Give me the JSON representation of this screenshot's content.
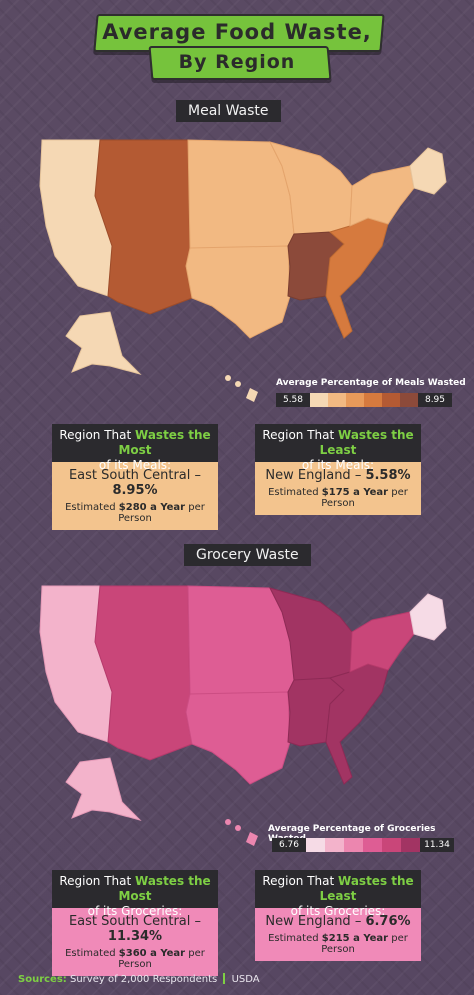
{
  "title": {
    "line1": "Average Food Waste,",
    "line2": "By Region"
  },
  "colors": {
    "accent_green": "#76c33c",
    "meal_scale": [
      "#f5d8b4",
      "#f2b982",
      "#e89a5a",
      "#d67a3e",
      "#b45a33",
      "#8c4a3a"
    ],
    "grocery_scale": [
      "#f6dbe6",
      "#f3b3cb",
      "#ec86af",
      "#de5d94",
      "#c94679",
      "#a23463"
    ]
  },
  "meal": {
    "tag": "Meal Waste",
    "legend_title": "Average Percentage of Meals Wasted",
    "legend_min": "5.58",
    "legend_max": "8.95",
    "most": {
      "head_pre": "Region That ",
      "head_hl": "Wastes the Most",
      "head_post": "of its Meals:",
      "region": "East South Central – ",
      "value": "8.95%",
      "est_pre": "Estimated ",
      "est_amount": "$280 a Year",
      "est_post": " per Person"
    },
    "least": {
      "head_pre": "Region That ",
      "head_hl": "Wastes the Least",
      "head_post": "of its Meals:",
      "region": "New England – ",
      "value": "5.58%",
      "est_pre": "Estimated ",
      "est_amount": "$175 a Year",
      "est_post": " per Person"
    }
  },
  "grocery": {
    "tag": "Grocery Waste",
    "legend_title": "Average Percentage of Groceries Wasted",
    "legend_min": "6.76",
    "legend_max": "11.34",
    "most": {
      "head_pre": "Region That ",
      "head_hl": "Wastes the Most",
      "head_post": "of its Groceries:",
      "region": "East South Central – ",
      "value": "11.34%",
      "est_pre": "Estimated ",
      "est_amount": "$360 a Year",
      "est_post": " per Person"
    },
    "least": {
      "head_pre": "Region That ",
      "head_hl": "Wastes the Least",
      "head_post": "of its Groceries:",
      "region": "New England – ",
      "value": "6.76%",
      "est_pre": "Estimated ",
      "est_amount": "$215 a Year",
      "est_post": " per Person"
    }
  },
  "source": {
    "label": "Sources:",
    "text": "Survey of 2,000 Respondents",
    "text2": "USDA"
  }
}
